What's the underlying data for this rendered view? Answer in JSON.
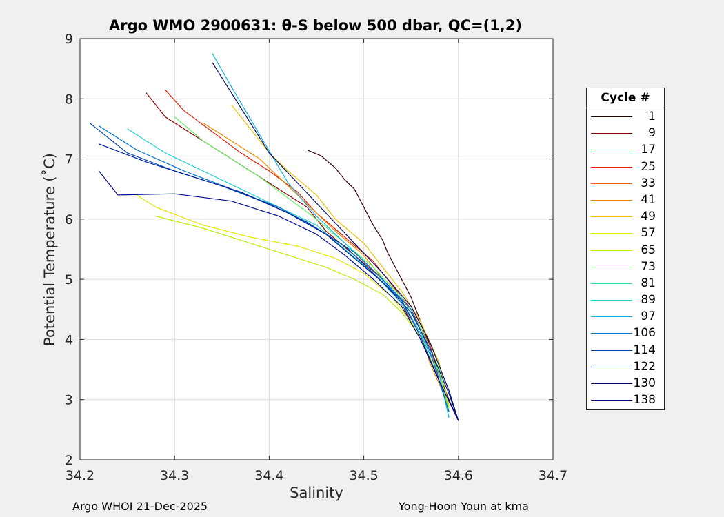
{
  "title": "Argo WMO 2900631: θ-S below 500 dbar,  QC=(1,2)",
  "footer_left": "Argo WHOI 21-Dec-2025",
  "footer_right": "Yong-Hoon Youn at kma",
  "chart_data": {
    "type": "line",
    "title": "Argo WMO 2900631: θ-S below 500 dbar,  QC=(1,2)",
    "xlabel": "Salinity",
    "ylabel": "Potential Temperature (˚C)",
    "xlim": [
      34.2,
      34.7
    ],
    "ylim": [
      2,
      9
    ],
    "xticks": [
      "34.2",
      "34.3",
      "34.4",
      "34.5",
      "34.6",
      "34.7"
    ],
    "yticks": [
      "2",
      "3",
      "4",
      "5",
      "6",
      "7",
      "8",
      "9"
    ],
    "grid": true,
    "legend_title": "Cycle #",
    "legend_position": "outside-right",
    "legend_cycles": [
      "1",
      "9",
      "17",
      "25",
      "33",
      "41",
      "49",
      "57",
      "65",
      "73",
      "81",
      "89",
      "97",
      "106",
      "114",
      "122",
      "130",
      "138"
    ],
    "legend_colors": [
      "#300000",
      "#8b0000",
      "#d40000",
      "#e81a00",
      "#f25a00",
      "#e88a00",
      "#f0c000",
      "#e6e600",
      "#b8f000",
      "#60f060",
      "#30e0a0",
      "#20d0d0",
      "#10b0e8",
      "#0070c8",
      "#0040b0",
      "#00209a",
      "#000c60",
      "#000a90"
    ],
    "series": [
      {
        "name": "1",
        "salinity": [
          34.44,
          34.455,
          34.47,
          34.48,
          34.49,
          34.5,
          34.51,
          34.52,
          34.525,
          34.53,
          34.54,
          34.55,
          34.56,
          34.57,
          34.58,
          34.59,
          34.6
        ],
        "theta": [
          7.15,
          7.05,
          6.85,
          6.65,
          6.5,
          6.2,
          5.9,
          5.65,
          5.45,
          5.3,
          5.0,
          4.7,
          4.3,
          3.9,
          3.4,
          3.0,
          2.65
        ]
      },
      {
        "name": "9",
        "salinity": [
          34.27,
          34.29,
          34.32,
          34.35,
          34.38,
          34.41,
          34.44,
          34.46,
          34.49,
          34.52,
          34.54,
          34.56,
          34.58,
          34.59
        ],
        "theta": [
          8.1,
          7.7,
          7.4,
          7.1,
          6.8,
          6.5,
          6.2,
          5.8,
          5.4,
          5.0,
          4.6,
          4.0,
          3.3,
          2.8
        ]
      },
      {
        "name": "25",
        "salinity": [
          34.29,
          34.31,
          34.34,
          34.37,
          34.4,
          34.43,
          34.45,
          34.48,
          34.51,
          34.53,
          34.55,
          34.57,
          34.58,
          34.59
        ],
        "theta": [
          8.15,
          7.8,
          7.45,
          7.1,
          6.8,
          6.45,
          6.1,
          5.7,
          5.3,
          4.9,
          4.5,
          3.9,
          3.3,
          2.8
        ]
      },
      {
        "name": "41",
        "salinity": [
          34.33,
          34.36,
          34.39,
          34.41,
          34.43,
          34.45,
          34.47,
          34.5,
          34.52,
          34.54,
          34.56,
          34.57,
          34.59
        ],
        "theta": [
          7.6,
          7.3,
          7.0,
          6.7,
          6.4,
          6.1,
          5.8,
          5.4,
          5.0,
          4.6,
          4.1,
          3.6,
          2.9
        ]
      },
      {
        "name": "49",
        "salinity": [
          34.36,
          34.38,
          34.4,
          34.42,
          34.45,
          34.47,
          34.5,
          34.52,
          34.54,
          34.56,
          34.58,
          34.59
        ],
        "theta": [
          7.9,
          7.5,
          7.1,
          6.8,
          6.4,
          6.0,
          5.6,
          5.2,
          4.8,
          4.3,
          3.6,
          2.9
        ]
      },
      {
        "name": "57",
        "salinity": [
          34.26,
          34.28,
          34.33,
          34.38,
          34.43,
          34.47,
          34.5,
          34.53,
          34.55,
          34.57,
          34.59
        ],
        "theta": [
          6.4,
          6.2,
          5.9,
          5.7,
          5.55,
          5.35,
          5.1,
          4.7,
          4.3,
          3.7,
          2.9
        ]
      },
      {
        "name": "65",
        "salinity": [
          34.28,
          34.33,
          34.38,
          34.42,
          34.46,
          34.49,
          34.52,
          34.54,
          34.56,
          34.58,
          34.59
        ],
        "theta": [
          6.05,
          5.85,
          5.6,
          5.4,
          5.2,
          5.0,
          4.75,
          4.45,
          4.05,
          3.45,
          2.85
        ]
      },
      {
        "name": "73",
        "salinity": [
          34.3,
          34.33,
          34.36,
          34.39,
          34.42,
          34.45,
          34.48,
          34.51,
          34.54,
          34.56,
          34.58,
          34.59
        ],
        "theta": [
          7.7,
          7.3,
          7.0,
          6.7,
          6.35,
          6.0,
          5.6,
          5.2,
          4.7,
          4.2,
          3.5,
          2.8
        ]
      },
      {
        "name": "89",
        "salinity": [
          34.25,
          34.29,
          34.33,
          34.37,
          34.41,
          34.45,
          34.48,
          34.51,
          34.54,
          34.56,
          34.58,
          34.59
        ],
        "theta": [
          7.5,
          7.1,
          6.8,
          6.5,
          6.2,
          5.9,
          5.5,
          5.1,
          4.6,
          4.1,
          3.4,
          2.7
        ]
      },
      {
        "name": "97",
        "salinity": [
          34.34,
          34.36,
          34.39,
          34.42,
          34.45,
          34.48,
          34.51,
          34.54,
          34.56,
          34.58,
          34.59
        ],
        "theta": [
          8.75,
          8.2,
          7.4,
          6.6,
          6.05,
          5.6,
          5.15,
          4.65,
          4.1,
          3.4,
          2.7
        ]
      },
      {
        "name": "106",
        "salinity": [
          34.22,
          34.26,
          34.31,
          34.36,
          34.41,
          34.45,
          34.49,
          34.52,
          34.55,
          34.57,
          34.59
        ],
        "theta": [
          7.55,
          7.15,
          6.8,
          6.5,
          6.2,
          5.85,
          5.45,
          5.0,
          4.5,
          3.8,
          2.8
        ]
      },
      {
        "name": "114",
        "salinity": [
          34.21,
          34.25,
          34.3,
          34.35,
          34.4,
          34.44,
          34.48,
          34.51,
          34.54,
          34.56,
          34.58,
          34.6
        ],
        "theta": [
          7.6,
          7.1,
          6.8,
          6.55,
          6.25,
          5.95,
          5.55,
          5.1,
          4.65,
          4.05,
          3.3,
          2.65
        ]
      },
      {
        "name": "122",
        "salinity": [
          34.22,
          34.27,
          34.32,
          34.37,
          34.42,
          34.46,
          34.49,
          34.52,
          34.55,
          34.57,
          34.59,
          34.6
        ],
        "theta": [
          7.25,
          6.95,
          6.7,
          6.45,
          6.1,
          5.75,
          5.35,
          4.95,
          4.45,
          3.85,
          3.1,
          2.65
        ]
      },
      {
        "name": "130",
        "salinity": [
          34.34,
          34.36,
          34.38,
          34.4,
          34.43,
          34.46,
          34.49,
          34.52,
          34.55,
          34.57,
          34.59,
          34.6
        ],
        "theta": [
          8.6,
          8.1,
          7.6,
          7.1,
          6.6,
          6.1,
          5.6,
          5.1,
          4.55,
          3.95,
          3.15,
          2.65
        ]
      },
      {
        "name": "138",
        "salinity": [
          34.22,
          34.24,
          34.3,
          34.36,
          34.41,
          34.45,
          34.48,
          34.51,
          34.54,
          34.56,
          34.58,
          34.6
        ],
        "theta": [
          6.8,
          6.4,
          6.42,
          6.3,
          6.05,
          5.75,
          5.4,
          5.0,
          4.55,
          4.0,
          3.3,
          2.65
        ]
      }
    ]
  }
}
